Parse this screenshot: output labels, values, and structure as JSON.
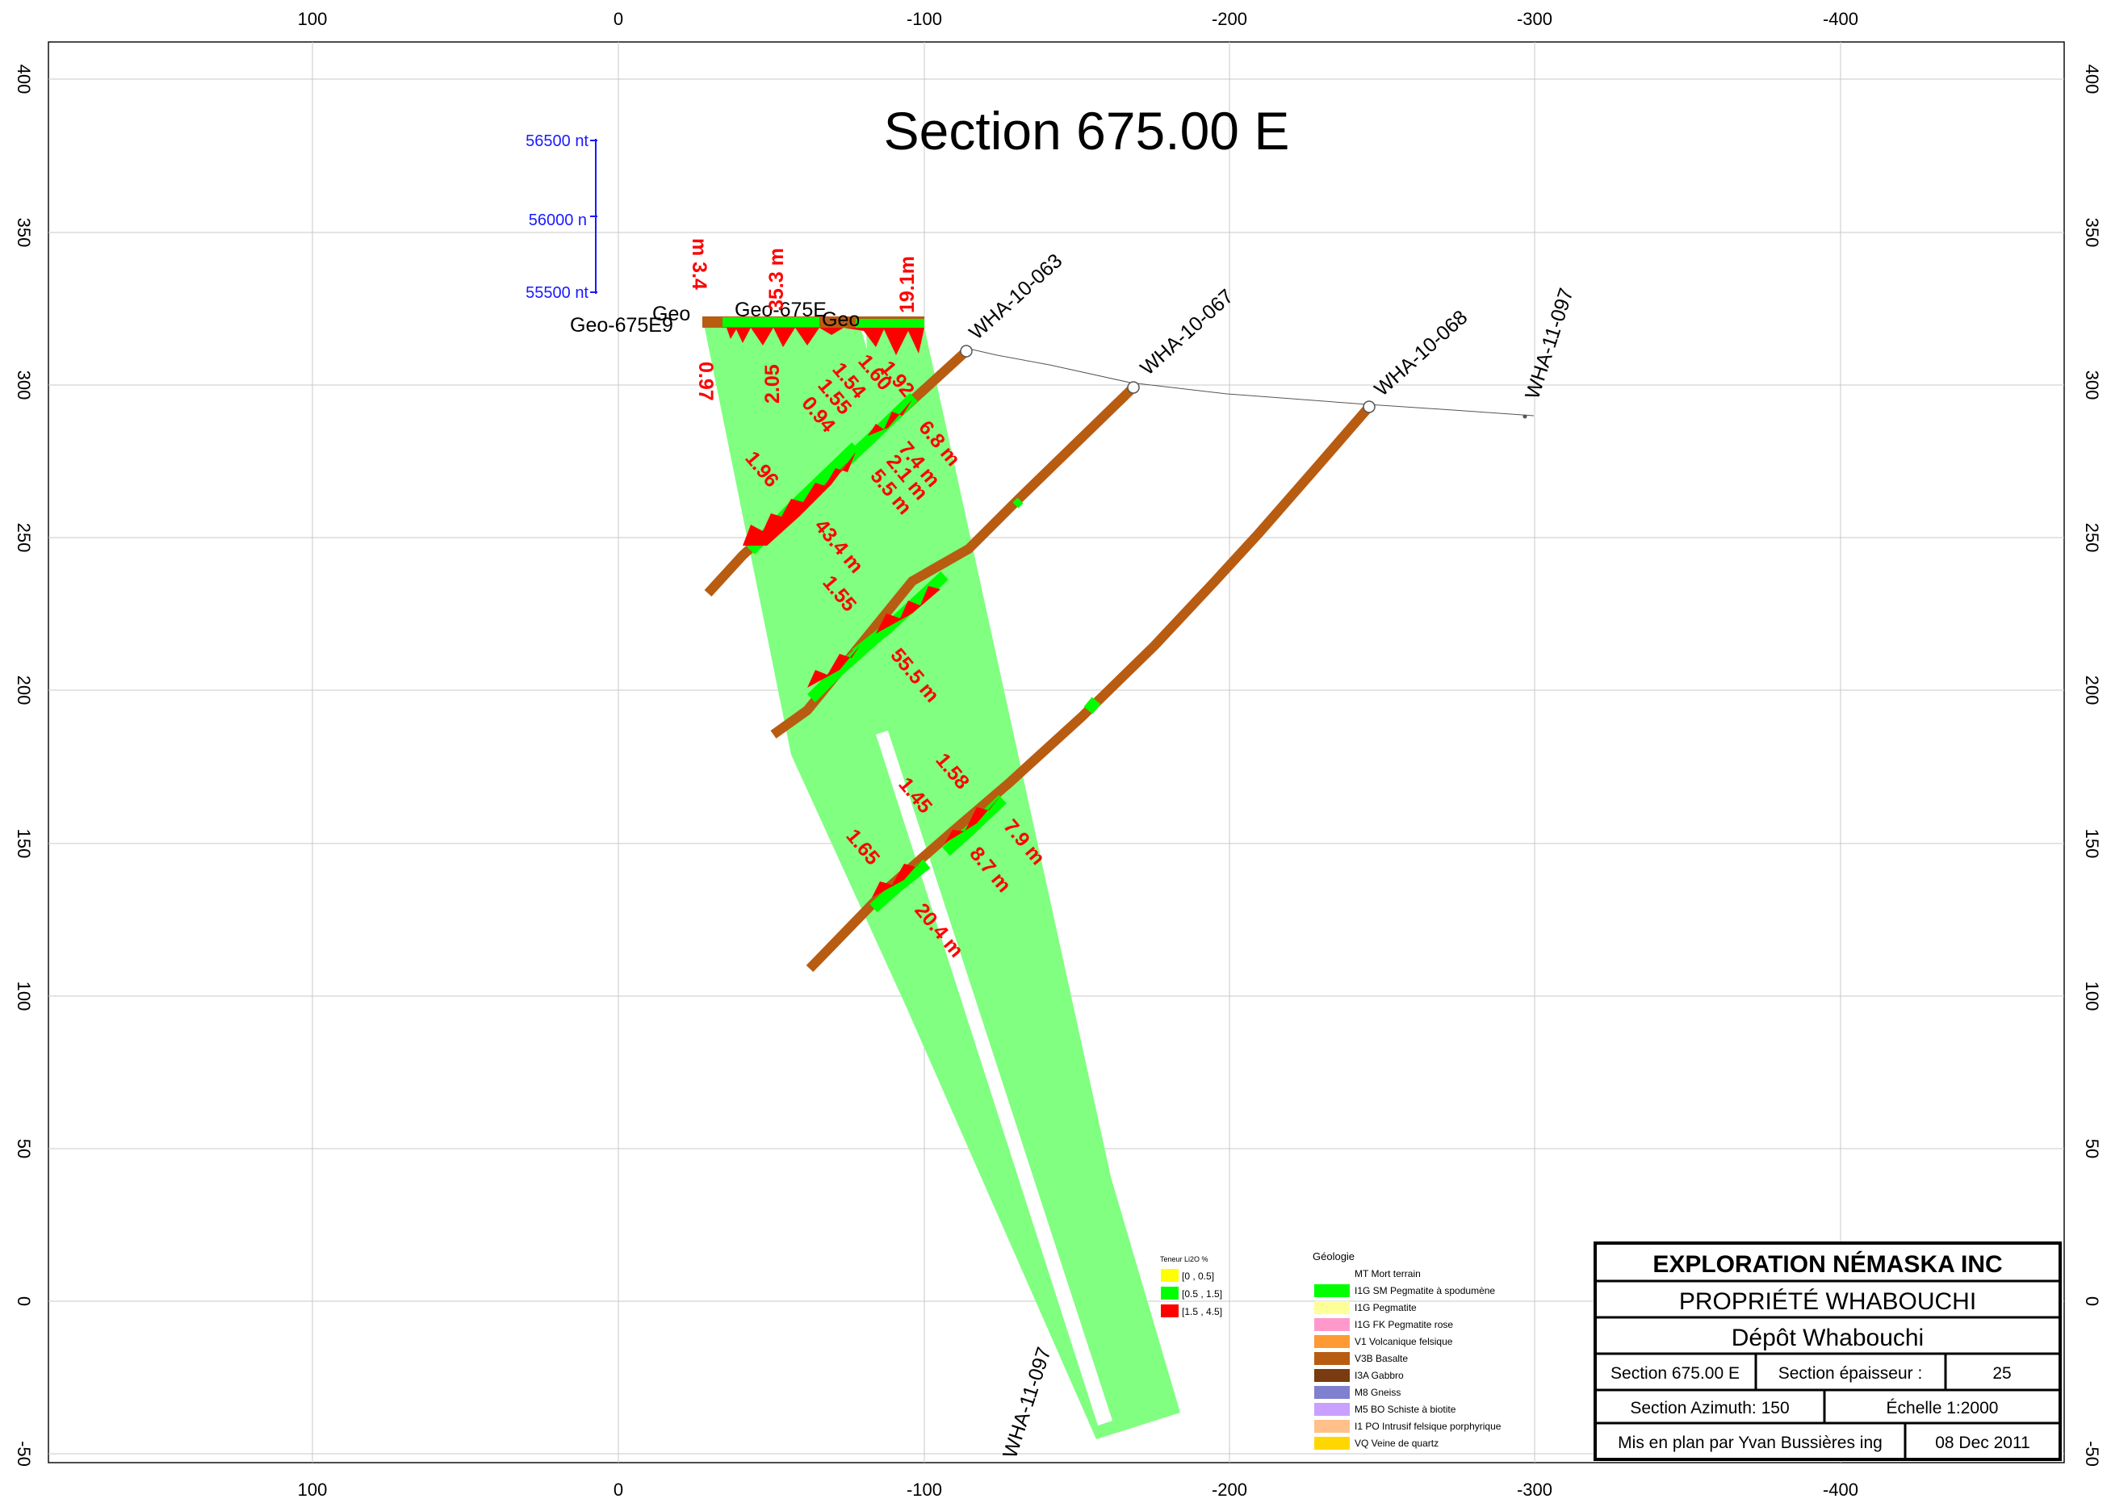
{
  "title": "Section 675.00 E",
  "axes": {
    "x_ticks": [
      "100",
      "0",
      "-100",
      "-200",
      "-300",
      "-400"
    ],
    "y_ticks": [
      "400",
      "350",
      "300",
      "250",
      "200",
      "150",
      "100",
      "50",
      "0",
      "-50"
    ]
  },
  "mag_scale": {
    "labels": [
      "56500 nt",
      "56000 n",
      "55500 nt"
    ]
  },
  "holes": [
    {
      "name": "WHA-10-063"
    },
    {
      "name": "WHA-10-067"
    },
    {
      "name": "WHA-10-068"
    },
    {
      "name": "WHA-11-097"
    },
    {
      "name": "WHA-11-097"
    }
  ],
  "geo_labels": [
    "Geo-675E9",
    "Geo",
    "Geo-675E",
    "Geo"
  ],
  "grade_labels": [
    {
      "text": "m 3.4"
    },
    {
      "text": "35.3 m"
    },
    {
      "text": "19.1m"
    },
    {
      "text": "0.97"
    },
    {
      "text": "2.05"
    },
    {
      "text": "1.54"
    },
    {
      "text": "1.55"
    },
    {
      "text": "0.94"
    },
    {
      "text": "1.60"
    },
    {
      "text": "1.92"
    },
    {
      "text": "6.8 m"
    },
    {
      "text": "7.4 m"
    },
    {
      "text": "2.1 m"
    },
    {
      "text": "5.5 m"
    },
    {
      "text": "1.96"
    },
    {
      "text": "43.4 m"
    },
    {
      "text": "1.55"
    },
    {
      "text": "55.5 m"
    },
    {
      "text": "1.58"
    },
    {
      "text": "1.45"
    },
    {
      "text": "7.9 m"
    },
    {
      "text": "8.7 m"
    },
    {
      "text": "1.65"
    },
    {
      "text": "20.4 m"
    }
  ],
  "grade_legend": {
    "title": "Teneur Li2O %",
    "items": [
      {
        "label": "[0 , 0.5]",
        "color": "#ffff00"
      },
      {
        "label": "[0.5 , 1.5]",
        "color": "#00ff00"
      },
      {
        "label": "[1.5 , 4.5]",
        "color": "#ff0000"
      }
    ]
  },
  "geology_legend": {
    "title": "Géologie",
    "items": [
      {
        "label": "MT Mort terrain",
        "color": "#ffffff"
      },
      {
        "label": "I1G SM Pegmatite à spodumène",
        "color": "#00ff00"
      },
      {
        "label": "I1G      Pegmatite",
        "color": "#ffff99"
      },
      {
        "label": "I1G FK Pegmatite rose",
        "color": "#ff99cc"
      },
      {
        "label": "V1 Volcanique felsique",
        "color": "#ff9933"
      },
      {
        "label": "V3B Basalte",
        "color": "#b85c12"
      },
      {
        "label": "I3A Gabbro",
        "color": "#7a3b10"
      },
      {
        "label": "M8 Gneiss",
        "color": "#8080d0"
      },
      {
        "label": "M5 BO Schiste à biotite",
        "color": "#c9a0ff"
      },
      {
        "label": "I1 PO Intrusif felsique porphyrique",
        "color": "#ffc08a"
      },
      {
        "label": "VQ Veine de quartz",
        "color": "#ffd700"
      }
    ]
  },
  "title_block": {
    "company": "EXPLORATION NÉMASKA INC",
    "property": "PROPRIÉTÉ WHABOUCHI",
    "deposit": "Dépôt Whabouchi",
    "section": "Section 675.00 E",
    "thickness_label": "Section épaisseur :",
    "thickness_value": "25",
    "azimuth": "Section Azimuth: 150",
    "scale": "Échelle  1:2000",
    "author": "Mis en plan par Yvan Bussières ing",
    "date": "08 Dec 2011"
  },
  "colors": {
    "zone_fill": "#80ff80",
    "drillhole": "#b85c12",
    "mineralized": "#00ff00",
    "high_grade": "#ff0000",
    "scale_blue": "#1a1aff"
  }
}
